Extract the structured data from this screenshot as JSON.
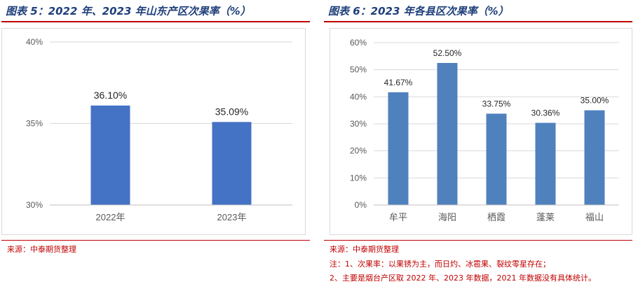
{
  "left": {
    "title": "图表 5：2022 年、2023 年山东产区次果率（%）",
    "source": "来源：中泰期货整理",
    "chart_data": {
      "type": "bar",
      "categories": [
        "2022年",
        "2023年"
      ],
      "values": [
        36.1,
        35.09
      ],
      "value_labels": [
        "36.10%",
        "35.09%"
      ],
      "ylim": [
        30,
        40
      ],
      "yticks": [
        30,
        35,
        40
      ],
      "ytick_labels": [
        "30%",
        "35%",
        "40%"
      ],
      "grid": true,
      "bar_color": "#4472c4"
    }
  },
  "right": {
    "title": "图表 6：2023 年各县区次果率（%）",
    "source": "来源：中泰期货整理",
    "note1": "注：1、次果率：以果锈为主，而日灼、冰雹果、裂纹零星存在；",
    "note2": "2、主要是烟台产区取 2022 年、2023 年数据，2021 年数据没有具体统计。",
    "chart_data": {
      "type": "bar",
      "categories": [
        "牟平",
        "海阳",
        "栖霞",
        "蓬莱",
        "福山"
      ],
      "values": [
        41.67,
        52.5,
        33.75,
        30.36,
        35.0
      ],
      "value_labels": [
        "41.67%",
        "52.50%",
        "33.75%",
        "30.36%",
        "35.00%"
      ],
      "ylim": [
        0,
        60
      ],
      "yticks": [
        0,
        10,
        20,
        30,
        40,
        50,
        60
      ],
      "ytick_labels": [
        "0%",
        "10%",
        "20%",
        "30%",
        "40%",
        "50%",
        "60%"
      ],
      "grid": true,
      "bar_color": "#4f81bd"
    }
  }
}
